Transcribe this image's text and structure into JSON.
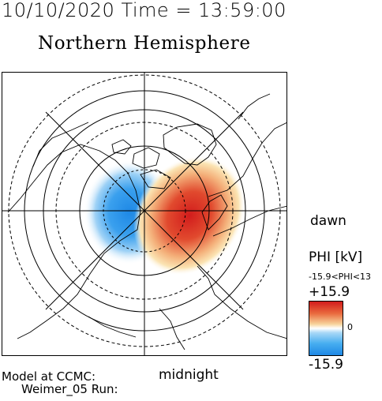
{
  "header": {
    "time_line": "10/10/2020 Time = 13:59:00"
  },
  "map": {
    "title": "Northern Hemisphere",
    "dawn_label": "dawn",
    "midnight_label": "midnight"
  },
  "legend": {
    "title": "PHI [kV]",
    "range_text": "-15.9<PHI<13",
    "max_label": "+15.9",
    "zero_label": "0",
    "min_label": "-15.9",
    "colors": {
      "positive": "#d21c1c",
      "neutral": "#ffffff",
      "negative": "#1e88e5"
    }
  },
  "footer": {
    "model_line": "Model at CCMC:",
    "run_line": "Weimer_05 Run:"
  }
}
